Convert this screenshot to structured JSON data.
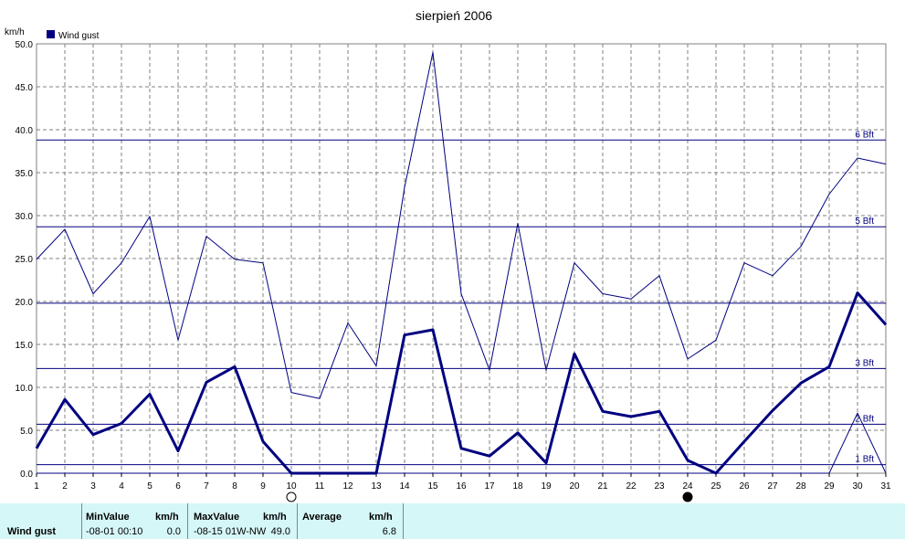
{
  "chart_data": {
    "type": "line",
    "title": "sierpień 2006",
    "ylabel": "km/h",
    "ylim": [
      0,
      50
    ],
    "xlim": [
      1,
      31
    ],
    "grid": true,
    "legend": "top-left",
    "yticks": [
      "0.0",
      "5.0",
      "10.0",
      "15.0",
      "20.0",
      "25.0",
      "30.0",
      "35.0",
      "40.0",
      "45.0",
      "50.0"
    ],
    "x": [
      1,
      2,
      3,
      4,
      5,
      6,
      7,
      8,
      9,
      10,
      11,
      12,
      13,
      14,
      15,
      16,
      17,
      18,
      19,
      20,
      21,
      22,
      23,
      24,
      25,
      26,
      27,
      28,
      29,
      30,
      31
    ],
    "series": [
      {
        "name": "Wind gust",
        "style": "thick",
        "values": [
          2.9,
          8.6,
          4.5,
          5.8,
          9.2,
          2.6,
          10.6,
          12.4,
          3.7,
          0,
          0,
          0,
          0,
          16.1,
          16.7,
          2.9,
          2.0,
          4.7,
          1.2,
          13.9,
          7.2,
          6.6,
          7.2,
          1.5,
          0,
          3.7,
          7.3,
          10.5,
          12.4,
          21.0,
          17.3
        ]
      },
      {
        "name": "",
        "style": "thin",
        "values": [
          24.9,
          28.4,
          20.9,
          24.5,
          29.9,
          15.5,
          27.6,
          24.9,
          24.5,
          9.4,
          8.7,
          17.5,
          12.5,
          33.3,
          49.0,
          20.9,
          12.0,
          29.1,
          12.0,
          24.5,
          20.9,
          20.3,
          23.0,
          13.3,
          15.5,
          24.5,
          23.0,
          26.4,
          32.5,
          36.7,
          36.0
        ]
      },
      {
        "name": "",
        "style": "thin",
        "values": [
          0,
          0,
          0,
          0,
          0,
          0,
          0,
          0,
          0,
          0,
          0,
          0,
          0,
          0,
          0,
          0,
          0,
          0,
          0,
          0,
          0,
          0,
          0,
          0,
          0,
          0,
          0,
          0,
          0,
          7.0,
          0
        ]
      }
    ],
    "bft_lines": [
      {
        "label": "1 Bft",
        "value": 1.0
      },
      {
        "label": "2 Bft",
        "value": 5.7
      },
      {
        "label": "3 Bft",
        "value": 12.2
      },
      {
        "label": "",
        "value": 19.8
      },
      {
        "label": "5 Bft",
        "value": 28.7
      },
      {
        "label": "6 Bft",
        "value": 38.8
      }
    ],
    "markers": [
      {
        "type": "open-circle",
        "day": 10
      },
      {
        "type": "filled-circle",
        "day": 24
      }
    ]
  },
  "colors": {
    "series": "#000080",
    "grid": "#808080",
    "footer_bg": "#d6f7f8"
  },
  "summary": {
    "row_label": "Wind gust",
    "min_header": "MinValue",
    "min_unit": "km/h",
    "min_time": "-08-01  00:10",
    "min_value": "0.0",
    "max_header": "MaxValue",
    "max_unit": "km/h",
    "max_time": "-08-15  01W-NW",
    "max_value": "49.0",
    "avg_header": "Average",
    "avg_unit": "km/h",
    "avg_value": "6.8"
  }
}
